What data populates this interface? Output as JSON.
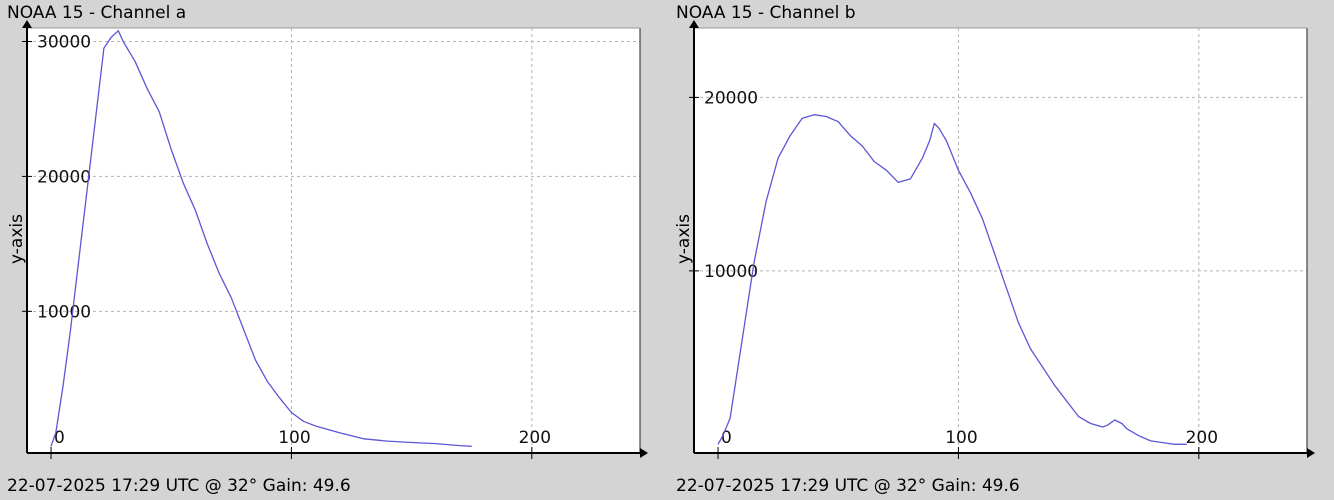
{
  "panels": [
    {
      "title": "NOAA 15 - Channel a",
      "footer": "22-07-2025 17:29 UTC @ 32° Gain: 49.6"
    },
    {
      "title": "NOAA 15 - Channel b",
      "footer": "22-07-2025 17:29 UTC @ 32° Gain: 49.6"
    }
  ],
  "colors": {
    "background": "#d4d4d4",
    "plot_background": "#ffffff",
    "line": "#5b57d6",
    "grid": "#b4b4b4",
    "axis": "#000000"
  },
  "chart_data": [
    {
      "type": "line",
      "title": "NOAA 15 - Channel a",
      "xlabel": "",
      "ylabel": "y-axis",
      "xlim": [
        -10,
        245
      ],
      "ylim": [
        -500,
        31000
      ],
      "xticks": [
        0,
        100,
        200
      ],
      "yticks": [
        10000,
        20000,
        30000
      ],
      "grid": true,
      "x": [
        0,
        2,
        5,
        8,
        10,
        12,
        15,
        18,
        20,
        22,
        25,
        28,
        30,
        35,
        40,
        45,
        50,
        55,
        60,
        65,
        70,
        75,
        80,
        85,
        90,
        95,
        100,
        105,
        110,
        115,
        120,
        125,
        130,
        140,
        150,
        160,
        165,
        170,
        175
      ],
      "y": [
        0,
        1000,
        4500,
        8500,
        11500,
        14500,
        19000,
        23500,
        26500,
        29500,
        30300,
        30800,
        30000,
        28500,
        26500,
        24800,
        22000,
        19500,
        17500,
        15000,
        12800,
        11000,
        8700,
        6400,
        4800,
        3600,
        2500,
        1850,
        1500,
        1250,
        1000,
        780,
        550,
        380,
        280,
        200,
        120,
        50,
        0
      ]
    },
    {
      "type": "line",
      "title": "NOAA 15 - Channel b",
      "xlabel": "",
      "ylabel": "y-axis",
      "xlim": [
        -10,
        245
      ],
      "ylim": [
        -500,
        24000
      ],
      "xticks": [
        0,
        100,
        200
      ],
      "yticks": [
        10000,
        20000
      ],
      "grid": true,
      "x": [
        0,
        2,
        5,
        10,
        15,
        20,
        25,
        30,
        35,
        40,
        45,
        50,
        55,
        60,
        65,
        70,
        75,
        80,
        85,
        88,
        90,
        92,
        95,
        100,
        105,
        110,
        115,
        120,
        125,
        130,
        140,
        150,
        155,
        160,
        162,
        165,
        168,
        170,
        175,
        180,
        185,
        190,
        195
      ],
      "y": [
        0,
        500,
        1500,
        6000,
        10500,
        14000,
        16500,
        17800,
        18800,
        19000,
        18900,
        18600,
        17800,
        17200,
        16300,
        15800,
        15100,
        15300,
        16500,
        17500,
        18500,
        18200,
        17500,
        15800,
        14500,
        13000,
        11000,
        9000,
        7000,
        5500,
        3400,
        1600,
        1200,
        1000,
        1100,
        1400,
        1200,
        900,
        500,
        200,
        100,
        0,
        0
      ]
    }
  ]
}
